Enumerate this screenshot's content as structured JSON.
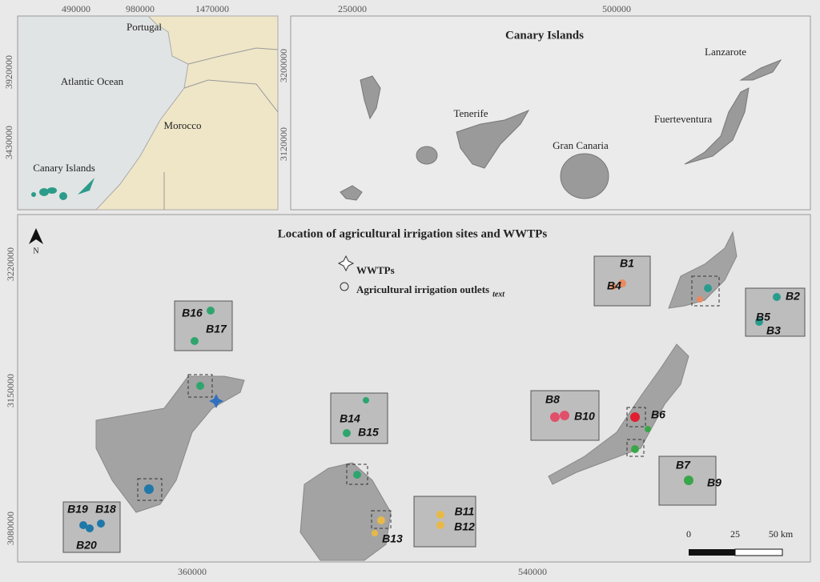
{
  "overview_map": {
    "x_ticks": [
      "490000",
      "980000",
      "1470000"
    ],
    "y_ticks": [
      "3920000",
      "3430000"
    ],
    "labels": [
      "Portugal",
      "Atlantic Ocean",
      "Morocco",
      "Canary Islands"
    ]
  },
  "islands_map": {
    "title": "Canary Islands",
    "x_ticks": [
      "250000",
      "500000"
    ],
    "y_ticks": [
      "3200000",
      "3120000"
    ],
    "labels": [
      "Lanzarote",
      "Tenerife",
      "Fuerteventura",
      "Gran Canaria"
    ]
  },
  "sites_map": {
    "title": "Location of agricultural irrigation sites and WWTPs",
    "north": "N",
    "y_ticks": [
      "3220000",
      "3150000",
      "3080000"
    ],
    "x_ticks": [
      "360000",
      "540000"
    ],
    "legend": {
      "wwtp": "WWTPs",
      "outlets": "Agricultural irrigation outlets",
      "outlets_subscript": "text"
    },
    "sites": [
      "B1",
      "B2",
      "B3",
      "B4",
      "B5",
      "B6",
      "B7",
      "B8",
      "B9",
      "B10",
      "B11",
      "B12",
      "B13",
      "B14",
      "B15",
      "B16",
      "B17",
      "B18",
      "B19",
      "B20"
    ],
    "scale_bar": [
      "0",
      "25",
      "50 km"
    ]
  }
}
